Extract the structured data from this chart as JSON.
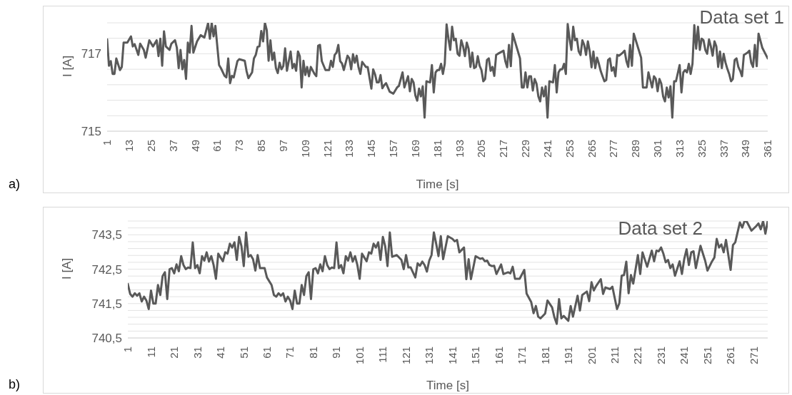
{
  "chart_data": [
    {
      "type": "line",
      "xlabel": "Time [s]",
      "ylabel": "I [A]",
      "annotations": [
        "Data set 1",
        "a)"
      ],
      "marker": "none",
      "grid": "y",
      "xlim": [
        1,
        361
      ],
      "xticks": [
        1,
        13,
        25,
        37,
        49,
        61,
        73,
        85,
        97,
        109,
        121,
        133,
        145,
        157,
        169,
        181,
        193,
        205,
        217,
        229,
        241,
        253,
        265,
        277,
        289,
        301,
        313,
        325,
        337,
        349,
        361
      ],
      "ylim": [
        715,
        717.8
      ],
      "yticks": [
        715,
        {
          "value": 715.4,
          "label": null
        },
        {
          "value": 715.8,
          "label": null
        },
        {
          "value": 716.2,
          "label": null
        },
        {
          "value": 716.6,
          "label": null
        },
        717,
        {
          "value": 717.4,
          "label": null
        },
        {
          "value": 717.8,
          "label": null
        }
      ],
      "x": [
        1,
        2,
        3,
        4,
        5,
        6,
        8,
        9,
        10,
        12,
        14,
        15,
        16,
        18,
        19,
        21,
        22,
        24,
        26,
        28,
        29,
        30,
        31,
        32,
        33,
        35,
        36,
        38,
        39,
        40,
        41,
        42,
        43,
        44,
        45,
        46,
        47,
        48,
        50,
        52,
        54,
        56,
        57,
        58,
        59,
        60,
        62,
        63,
        65,
        66,
        67,
        68,
        69,
        70,
        72,
        73,
        76,
        77,
        78,
        80,
        81,
        82,
        83,
        84,
        85,
        86,
        87,
        88,
        89,
        90,
        91,
        92,
        93,
        94,
        95,
        96,
        97,
        98,
        99,
        101,
        102,
        103,
        104,
        105,
        106,
        107,
        108,
        109,
        110,
        111,
        112,
        114,
        115,
        116,
        117,
        118,
        120,
        122,
        123,
        124,
        125,
        126,
        127,
        128,
        129,
        130,
        132,
        133,
        134,
        135,
        136,
        137,
        138,
        139,
        140,
        142,
        143,
        145,
        146,
        147,
        148,
        149,
        150,
        151,
        152,
        153,
        155,
        157,
        159,
        160,
        162,
        163,
        165,
        166,
        167,
        168,
        169,
        170,
        171,
        172,
        173,
        174,
        175,
        177,
        178,
        179,
        180,
        181,
        182,
        183,
        184,
        185,
        186,
        187,
        188,
        189,
        190,
        191,
        192,
        193,
        194,
        195,
        196,
        197,
        198,
        199,
        200,
        201,
        202,
        203,
        204,
        205,
        206,
        207,
        208,
        209,
        210,
        211,
        212,
        213,
        214,
        217,
        218,
        219,
        220,
        221,
        222,
        226,
        227,
        228,
        229,
        230,
        231,
        232,
        233,
        234,
        235,
        236,
        237,
        238,
        239,
        240,
        241,
        242,
        244,
        245,
        246,
        247,
        248,
        249,
        250,
        251,
        252,
        253,
        254,
        255,
        256,
        257,
        258,
        259,
        260,
        261,
        262,
        263,
        264,
        265,
        266,
        267,
        268,
        269,
        270,
        271,
        272,
        273,
        274,
        275,
        276,
        277,
        278,
        279,
        280,
        282,
        283,
        284,
        285,
        286,
        287,
        288,
        292,
        293,
        295,
        296,
        298,
        299,
        300,
        301,
        302,
        303,
        304,
        305,
        306,
        307,
        308,
        309,
        310,
        311,
        313,
        314,
        315,
        316,
        317,
        318,
        319,
        320,
        321,
        322,
        323,
        324,
        325,
        326,
        327,
        328,
        329,
        330,
        331,
        332,
        333,
        334,
        335,
        336,
        337,
        338,
        339,
        340,
        341,
        342,
        343,
        344,
        345,
        346,
        347,
        348,
        349,
        350,
        351,
        352,
        353,
        354,
        355,
        356,
        358,
        361
      ],
      "series": [
        {
          "color": "#595959",
          "values": [
            717.37,
            716.69,
            716.81,
            716.48,
            716.48,
            716.88,
            716.58,
            716.66,
            717.29,
            717.29,
            717.45,
            717.19,
            717.25,
            716.97,
            717.26,
            717.1,
            716.9,
            717.35,
            717.19,
            717.35,
            716.94,
            717.39,
            716.69,
            717.58,
            717.19,
            717.1,
            717.26,
            717.35,
            717.16,
            716.63,
            717.1,
            716.6,
            716.84,
            716.35,
            717.29,
            717.03,
            717.72,
            717.03,
            717.32,
            717.48,
            717.42,
            717.79,
            717.39,
            717.8,
            717.45,
            717.72,
            716.71,
            716.63,
            716.43,
            716.39,
            716.88,
            716.24,
            716.43,
            716.39,
            716.81,
            716.86,
            716.82,
            716.55,
            716.37,
            716.52,
            716.88,
            716.97,
            717.18,
            717.19,
            717.59,
            717.32,
            717.8,
            717.61,
            716.82,
            717.35,
            716.84,
            717.03,
            716.63,
            716.5,
            716.77,
            716.6,
            716.68,
            717.14,
            716.56,
            717.06,
            716.63,
            716.74,
            716.56,
            717.06,
            716.94,
            716.13,
            716.82,
            716.45,
            716.66,
            716.42,
            716.66,
            716.48,
            716.42,
            717.21,
            717.23,
            716.81,
            716.58,
            716.58,
            716.82,
            716.66,
            716.97,
            717.03,
            717.23,
            716.81,
            716.75,
            716.58,
            716.95,
            716.88,
            716.6,
            716.99,
            716.77,
            716.95,
            716.65,
            716.48,
            716.79,
            716.66,
            716.66,
            716.1,
            716.6,
            716.47,
            716.26,
            716.26,
            716.45,
            716.11,
            716.19,
            716.24,
            716.02,
            715.97,
            716.13,
            716.17,
            716.52,
            716.13,
            716.42,
            716.03,
            716.35,
            716.26,
            715.92,
            715.79,
            716.1,
            715.9,
            716.16,
            715.35,
            716.29,
            716.26,
            716.71,
            716,
            716.52,
            716.58,
            716.58,
            716.74,
            716.48,
            716.74,
            717.76,
            717.39,
            717.1,
            717.7,
            717.35,
            717.39,
            717,
            716.95,
            717.35,
            717.19,
            716.94,
            717.29,
            717.13,
            716.66,
            717.03,
            716.63,
            716.66,
            716.94,
            716.69,
            716.58,
            716.29,
            716.35,
            716.84,
            716.88,
            716.56,
            716.66,
            716.43,
            716.97,
            717,
            717.08,
            716.81,
            716.65,
            717.23,
            716.68,
            717.52,
            716.88,
            716.13,
            716.13,
            716.52,
            716.13,
            716.42,
            716.42,
            716.05,
            716.35,
            716.23,
            715.9,
            715.77,
            716.13,
            715.9,
            716.16,
            715.35,
            716.29,
            716.26,
            716.71,
            716,
            716.52,
            716.6,
            716.6,
            716.74,
            716.48,
            717.77,
            717.39,
            717.1,
            717.7,
            717.35,
            717.39,
            717.06,
            716.97,
            717.35,
            717.23,
            716.97,
            717.32,
            717.06,
            716.65,
            717.06,
            716.63,
            716.9,
            716.74,
            716.55,
            716.42,
            716.29,
            716.32,
            716.84,
            716.88,
            716.56,
            716.65,
            716.42,
            716.97,
            716.95,
            717.03,
            717.08,
            716.81,
            716.66,
            717.23,
            716.69,
            717.52,
            716.9,
            716.13,
            716.13,
            716.52,
            716.13,
            716.42,
            716.35,
            716.03,
            716.35,
            716.23,
            715.9,
            715.77,
            716.13,
            715.87,
            716.16,
            715.35,
            716.29,
            716.29,
            716.71,
            716,
            716.52,
            716.58,
            716.52,
            716.74,
            716.48,
            716.74,
            717.74,
            717.13,
            717.7,
            717.1,
            717.39,
            717.35,
            717.1,
            717,
            717.37,
            717.19,
            716.95,
            717.32,
            717.19,
            716.66,
            717.06,
            716.63,
            717,
            716.77,
            716.61,
            716.48,
            716.29,
            716.35,
            716.84,
            716.88,
            716.66,
            716.56,
            716.42,
            716.97,
            717,
            717.03,
            717.08,
            716.77,
            716.66,
            717.23,
            716.68,
            717.52,
            717.16,
            716.88
          ]
        }
      ]
    },
    {
      "type": "line",
      "xlabel": "Time [s]",
      "ylabel": "I [A]",
      "annotations": [
        "Data set 2",
        "b)"
      ],
      "marker": "none",
      "grid": "y",
      "xlim": [
        1,
        277
      ],
      "xticks": [
        1,
        11,
        21,
        31,
        41,
        51,
        61,
        71,
        81,
        91,
        101,
        111,
        121,
        131,
        141,
        151,
        161,
        171,
        181,
        191,
        201,
        211,
        221,
        231,
        241,
        251,
        261,
        271
      ],
      "ylim": [
        740.5,
        743.9
      ],
      "yticks": [
        {
          "value": 740.5,
          "label": "740,5"
        },
        {
          "value": 740.7,
          "label": null
        },
        {
          "value": 740.9,
          "label": null
        },
        {
          "value": 741.1,
          "label": null
        },
        {
          "value": 741.3,
          "label": null
        },
        {
          "value": 741.5,
          "label": "741,5"
        },
        {
          "value": 741.7,
          "label": null
        },
        {
          "value": 741.9,
          "label": null
        },
        {
          "value": 742.1,
          "label": null
        },
        {
          "value": 742.3,
          "label": null
        },
        {
          "value": 742.5,
          "label": "742,5"
        },
        {
          "value": 742.7,
          "label": null
        },
        {
          "value": 742.9,
          "label": null
        },
        {
          "value": 743.1,
          "label": null
        },
        {
          "value": 743.3,
          "label": null
        },
        {
          "value": 743.5,
          "label": "743,5"
        },
        {
          "value": 743.7,
          "label": null
        },
        {
          "value": 743.9,
          "label": null
        }
      ],
      "x": [
        1,
        2,
        3,
        4,
        5,
        6,
        7,
        8,
        9,
        10,
        11,
        12,
        13,
        14,
        15,
        16,
        17,
        18,
        19,
        20,
        21,
        22,
        23,
        24,
        25,
        26,
        27,
        28,
        29,
        30,
        31,
        32,
        33,
        34,
        35,
        36,
        37,
        38,
        39,
        40,
        41,
        42,
        43,
        44,
        45,
        46,
        47,
        48,
        49,
        50,
        51,
        52,
        53,
        54,
        55,
        56,
        57,
        58,
        60,
        61,
        63,
        64,
        65,
        66,
        67,
        68,
        69,
        70,
        71,
        72,
        73,
        74,
        75,
        76,
        77,
        78,
        79,
        80,
        81,
        82,
        83,
        84,
        85,
        86,
        87,
        88,
        89,
        90,
        91,
        92,
        93,
        94,
        95,
        96,
        97,
        98,
        99,
        100,
        101,
        102,
        103,
        104,
        105,
        106,
        107,
        108,
        109,
        110,
        111,
        112,
        113,
        114,
        115,
        117,
        119,
        120,
        121,
        122,
        123,
        125,
        126,
        127,
        128,
        129,
        130,
        131,
        132,
        133,
        134,
        135,
        136,
        137,
        139,
        141,
        142,
        143,
        144,
        146,
        147,
        148,
        149,
        151,
        153,
        154,
        155,
        156,
        157,
        158,
        159,
        160,
        162,
        163,
        165,
        166,
        167,
        168,
        170,
        172,
        173,
        175,
        176,
        177,
        178,
        179,
        181,
        182,
        184,
        185,
        186,
        187,
        188,
        189,
        191,
        192,
        193,
        195,
        196,
        197,
        199,
        200,
        201,
        202,
        203,
        205,
        206,
        207,
        209,
        210,
        212,
        213,
        214,
        215,
        216,
        217,
        218,
        219,
        221,
        222,
        223,
        225,
        227,
        228,
        229,
        230,
        231,
        232,
        233,
        234,
        235,
        236,
        237,
        239,
        240,
        241,
        242,
        243,
        244,
        245,
        246,
        248,
        250,
        251,
        253,
        254,
        255,
        256,
        257,
        258,
        259,
        261,
        262,
        263,
        265,
        266,
        267,
        268,
        270,
        272,
        273,
        274,
        275,
        276,
        277
      ],
      "series": [
        {
          "color": "#595959",
          "values": [
            742.07,
            741.78,
            741.7,
            741.8,
            741.73,
            741.8,
            741.56,
            741.7,
            741.59,
            741.34,
            741.88,
            741.5,
            741.5,
            742.04,
            741.75,
            742.3,
            742.41,
            741.63,
            742.5,
            742.53,
            742.38,
            742.64,
            742.44,
            742.88,
            742.62,
            742.5,
            742.55,
            742.53,
            743.28,
            742.53,
            742.62,
            742.38,
            742.88,
            742.75,
            742.99,
            742.72,
            742.88,
            742.62,
            742.22,
            742.95,
            742.84,
            742.73,
            742.99,
            742.95,
            743.24,
            743.13,
            743.28,
            742.77,
            743.44,
            743.17,
            742.59,
            743.57,
            742.86,
            742.91,
            742.79,
            742.46,
            742.91,
            742.53,
            742.53,
            742.26,
            742.04,
            741.75,
            741.7,
            741.8,
            741.73,
            741.8,
            741.56,
            741.7,
            741.59,
            741.34,
            741.88,
            741.5,
            741.5,
            742.04,
            741.75,
            742.3,
            742.41,
            741.63,
            742.5,
            742.53,
            742.38,
            742.64,
            742.44,
            742.88,
            742.62,
            742.5,
            742.55,
            742.53,
            743.28,
            742.53,
            742.62,
            742.38,
            742.88,
            742.75,
            742.99,
            742.72,
            742.88,
            742.62,
            742.22,
            742.95,
            742.84,
            742.73,
            742.99,
            742.95,
            743.24,
            743.13,
            743.28,
            742.77,
            743.44,
            743.17,
            742.59,
            743.57,
            742.86,
            742.91,
            742.77,
            742.5,
            742.91,
            742.55,
            742.55,
            742.26,
            742.67,
            742.6,
            742.72,
            742.62,
            742.43,
            742.75,
            742.91,
            743.57,
            743.24,
            742.88,
            743.46,
            742.79,
            743.46,
            743.38,
            743.31,
            743.35,
            742.99,
            743.13,
            742.21,
            742.79,
            742.21,
            742.88,
            742.8,
            742.82,
            742.73,
            742.75,
            742.62,
            742.59,
            742.6,
            742.36,
            742.64,
            742.36,
            742.41,
            742.38,
            742.57,
            742.22,
            742.22,
            742.48,
            741.79,
            741.54,
            741.22,
            741.43,
            741.12,
            741.07,
            741.21,
            741.59,
            741.39,
            741.1,
            740.91,
            741.63,
            741.07,
            741.14,
            741,
            741.43,
            741.12,
            741.73,
            741.3,
            741.75,
            741.85,
            741.57,
            742.12,
            741.88,
            742.01,
            742.21,
            741.78,
            741.97,
            741.92,
            741.99,
            741.34,
            741.51,
            742.31,
            742.33,
            742.72,
            741.8,
            742.33,
            742.08,
            742.91,
            742.36,
            742.99,
            742.57,
            743.04,
            742.73,
            743.04,
            743.02,
            743.13,
            742.95,
            742.7,
            742.77,
            742.53,
            742.64,
            742.31,
            742.73,
            742.36,
            742.8,
            743.08,
            742.62,
            742.99,
            743.02,
            742.53,
            743.18,
            742.75,
            742.46,
            742.73,
            742.84,
            743.38,
            743.13,
            743.22,
            742.99,
            743.35,
            742.48,
            743.2,
            743.28,
            743.86,
            743.71,
            743.9,
            743.88,
            743.62,
            743.75,
            743.83,
            743.66,
            743.9,
            743.53,
            743.9
          ]
        }
      ]
    }
  ]
}
